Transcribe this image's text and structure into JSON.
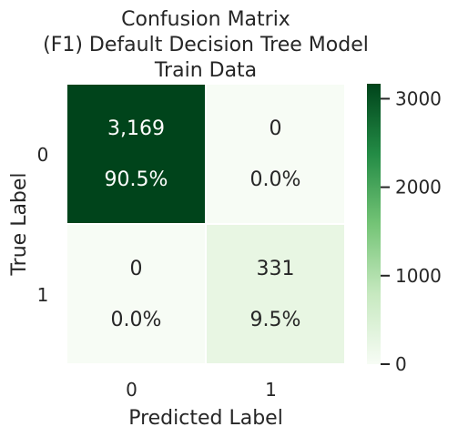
{
  "chart_data": {
    "type": "heatmap",
    "title_lines": [
      "Confusion Matrix",
      "(F1) Default Decision Tree Model",
      "Train Data"
    ],
    "xlabel": "Predicted Label",
    "ylabel": "True Label",
    "x_categories": [
      "0",
      "1"
    ],
    "y_categories": [
      "0",
      "1"
    ],
    "values": [
      [
        3169,
        0
      ],
      [
        0,
        331
      ]
    ],
    "count_labels": [
      [
        "3,169",
        "0"
      ],
      [
        "0",
        "331"
      ]
    ],
    "percent_labels": [
      [
        "90.5%",
        "0.0%"
      ],
      [
        "0.0%",
        "9.5%"
      ]
    ],
    "colormap": "Greens",
    "colorbar": {
      "range": [
        0,
        3169
      ],
      "ticks": [
        0,
        1000,
        2000,
        3000
      ],
      "tick_labels": [
        "0",
        "1000",
        "2000",
        "3000"
      ]
    }
  }
}
